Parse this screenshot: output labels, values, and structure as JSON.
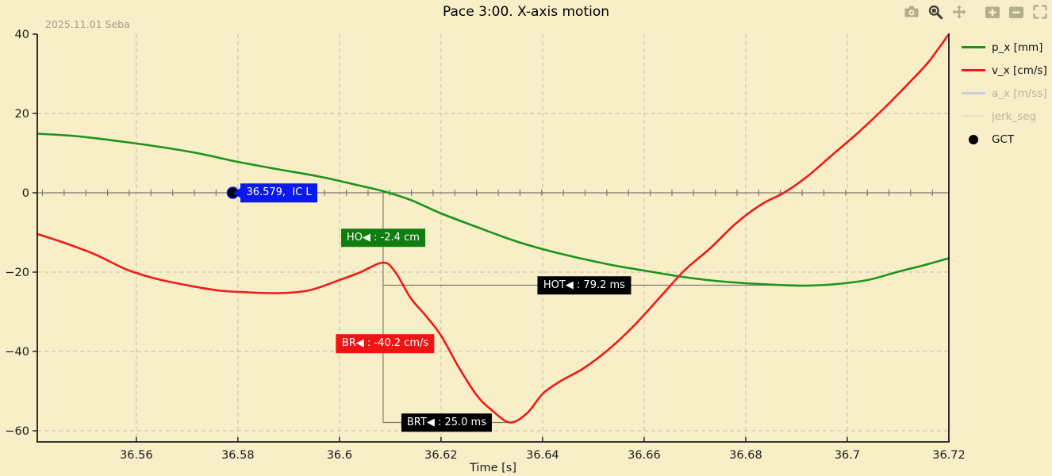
{
  "window": {
    "watermark": "2025.11.01 Seba"
  },
  "title": "Pace 3:00. X-axis motion",
  "toolbar": {
    "active_tool": "zoom",
    "buttons": [
      {
        "name": "download-plot"
      },
      {
        "name": "zoom"
      },
      {
        "name": "pan"
      },
      {
        "name": "zoom-in"
      },
      {
        "name": "zoom-out"
      },
      {
        "name": "autoscale"
      }
    ]
  },
  "legend": {
    "items": [
      {
        "label": "p_x [mm]",
        "marker": "line",
        "color": "#1b941b",
        "text_color": "#111111",
        "enabled": true
      },
      {
        "label": "v_x [cm/s]",
        "marker": "line",
        "color": "#ef1a1a",
        "text_color": "#111111",
        "enabled": true
      },
      {
        "label": "a_x [m/ss]",
        "marker": "line",
        "color": "#ccccde",
        "text_color": "#bab694",
        "enabled": false
      },
      {
        "label": "jerk_seg",
        "marker": "line",
        "color": "#ebe5cc",
        "text_color": "#bab694",
        "enabled": false
      },
      {
        "label": "GCT",
        "marker": "dot",
        "color": "#000000",
        "text_color": "#111111",
        "enabled": true
      }
    ]
  },
  "chart_data": {
    "type": "line",
    "title": "Pace 3:00. X-axis motion",
    "xlabel": "Time [s]",
    "x_range": [
      36.5405,
      36.72
    ],
    "y_range": [
      -62.8,
      40
    ],
    "x_ticks": {
      "values": [
        36.56,
        36.58,
        36.6,
        36.62,
        36.64,
        36.66,
        36.68,
        36.7,
        36.72
      ],
      "labels": [
        "36.56",
        "36.58",
        "36.6",
        "36.62",
        "36.64",
        "36.66",
        "36.68",
        "36.7",
        "36.72"
      ]
    },
    "y_ticks": {
      "values": [
        40,
        20,
        0,
        -20,
        -40,
        -60
      ],
      "labels": [
        "40",
        "20",
        "0",
        "−20",
        "−40",
        "−60"
      ]
    },
    "grid": {
      "vertical_at_x_ticks": true,
      "horizontal_at": [
        20,
        -20,
        -40,
        -60
      ],
      "zero_line_with_minor_ticks": true
    },
    "series": [
      {
        "name": "p_x [mm]",
        "color": "#1b941b",
        "width": 2.6,
        "hidden": false,
        "points": [
          [
            36.5405,
            14.9
          ],
          [
            36.548,
            14.3
          ],
          [
            36.556,
            13.1
          ],
          [
            36.564,
            11.7
          ],
          [
            36.572,
            10.0
          ],
          [
            36.58,
            7.8
          ],
          [
            36.588,
            5.9
          ],
          [
            36.596,
            4.1
          ],
          [
            36.604,
            1.8
          ],
          [
            36.6086,
            0.4
          ],
          [
            36.614,
            -1.8
          ],
          [
            36.62,
            -5.2
          ],
          [
            36.627,
            -8.6
          ],
          [
            36.634,
            -11.9
          ],
          [
            36.64,
            -14.2
          ],
          [
            36.647,
            -16.4
          ],
          [
            36.654,
            -18.3
          ],
          [
            36.66,
            -19.6
          ],
          [
            36.667,
            -21.1
          ],
          [
            36.674,
            -22.2
          ],
          [
            36.68,
            -22.8
          ],
          [
            36.686,
            -23.2
          ],
          [
            36.692,
            -23.4
          ],
          [
            36.698,
            -23.0
          ],
          [
            36.704,
            -22.0
          ],
          [
            36.71,
            -19.9
          ],
          [
            36.715,
            -18.3
          ],
          [
            36.72,
            -16.5
          ]
        ]
      },
      {
        "name": "v_x [cm/s]",
        "color": "#ef1a1a",
        "width": 2.6,
        "hidden": false,
        "points": [
          [
            36.5405,
            -10.4
          ],
          [
            36.546,
            -12.7
          ],
          [
            36.552,
            -15.6
          ],
          [
            36.558,
            -19.3
          ],
          [
            36.564,
            -21.7
          ],
          [
            36.57,
            -23.3
          ],
          [
            36.576,
            -24.6
          ],
          [
            36.582,
            -25.1
          ],
          [
            36.588,
            -25.3
          ],
          [
            36.594,
            -24.6
          ],
          [
            36.6,
            -22.0
          ],
          [
            36.604,
            -20.1
          ],
          [
            36.6086,
            -17.6
          ],
          [
            36.611,
            -20.0
          ],
          [
            36.614,
            -26.5
          ],
          [
            36.617,
            -31.0
          ],
          [
            36.62,
            -36.0
          ],
          [
            36.6235,
            -44.0
          ],
          [
            36.627,
            -51.0
          ],
          [
            36.63,
            -54.8
          ],
          [
            36.6336,
            -57.9
          ],
          [
            36.637,
            -55.5
          ],
          [
            36.64,
            -50.7
          ],
          [
            36.6435,
            -47.5
          ],
          [
            36.648,
            -44.3
          ],
          [
            36.653,
            -39.5
          ],
          [
            36.658,
            -33.5
          ],
          [
            36.663,
            -26.5
          ],
          [
            36.668,
            -19.5
          ],
          [
            36.673,
            -14.0
          ],
          [
            36.678,
            -7.8
          ],
          [
            36.683,
            -3.0
          ],
          [
            36.6875,
            0.0
          ],
          [
            36.692,
            4.0
          ],
          [
            36.697,
            9.5
          ],
          [
            36.702,
            15.0
          ],
          [
            36.707,
            21.0
          ],
          [
            36.712,
            27.5
          ],
          [
            36.716,
            33.0
          ],
          [
            36.72,
            40.0
          ]
        ]
      },
      {
        "name": "a_x [m/ss]",
        "color": "#ccccde",
        "width": 1.5,
        "hidden": true,
        "points": []
      },
      {
        "name": "jerk_seg",
        "color": "#ebe5cc",
        "width": 1.5,
        "hidden": true,
        "points": []
      }
    ],
    "gct_marker": {
      "label": "GCT",
      "t": 36.579,
      "v": 0
    },
    "guides": [
      {
        "id": "ho-vline",
        "type": "v",
        "t": 36.6086,
        "v1": 0,
        "v2": -57.9
      },
      {
        "id": "hot-hline",
        "type": "h",
        "v": -23.3,
        "t1": 36.6086,
        "t2": 36.6878
      },
      {
        "id": "brt-hline",
        "type": "h",
        "v": -57.9,
        "t1": 36.6086,
        "t2": 36.6336
      }
    ],
    "annotations": [
      {
        "id": "annotation-ic",
        "text": "36.579,  IC L",
        "bg": "#0a1aee",
        "fg": "#ffffff",
        "anchor_t": 36.579,
        "anchor_v": 0,
        "placement": "right-of-anchor"
      },
      {
        "id": "annotation-ho",
        "text": "HO◀ : -2.4 cm",
        "bg": "#0f7d0f",
        "fg": "#ffffff",
        "center_t": 36.6086,
        "center_v": -11.3
      },
      {
        "id": "annotation-hot",
        "text": "HOT◀ : 79.2 ms",
        "bg": "#000000",
        "fg": "#ffffff",
        "center_t": 36.6482,
        "center_v": -23.3
      },
      {
        "id": "annotation-br",
        "text": "BR◀ : -40.2 cm/s",
        "bg": "#ee1414",
        "fg": "#ffffff",
        "center_t": 36.609,
        "center_v": -38.0
      },
      {
        "id": "annotation-brt",
        "text": "BRT◀ : 25.0 ms",
        "bg": "#000000",
        "fg": "#ffffff",
        "center_t": 36.6211,
        "center_v": -57.9
      }
    ]
  }
}
